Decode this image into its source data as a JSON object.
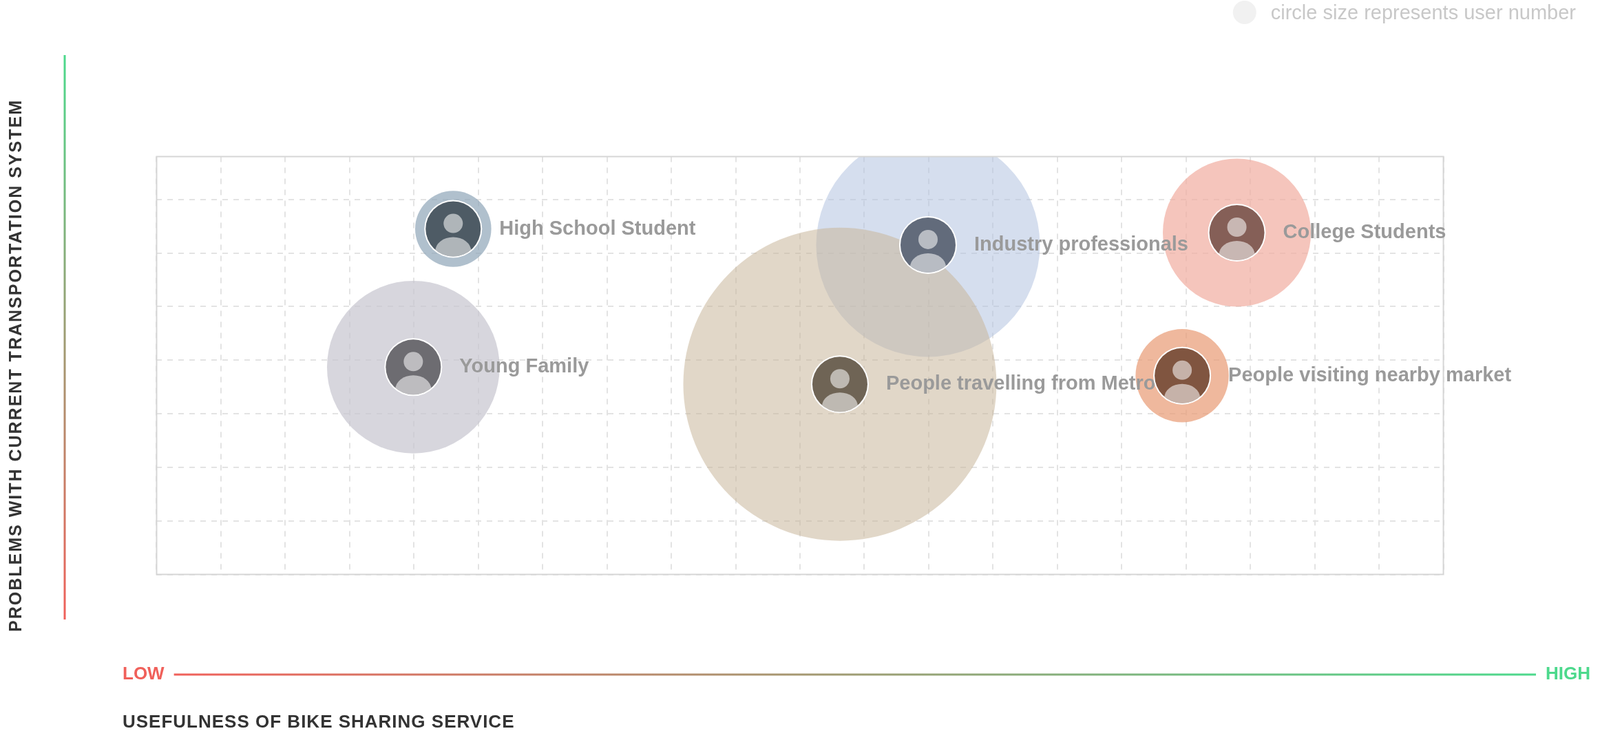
{
  "chart_data": {
    "type": "bubble",
    "x_label": "USEFULNESS OF BIKE SHARING SERVICE",
    "y_label": "PROBLEMS WITH CURRENT TRANSPORTATION SYSTEM",
    "x_low_label": "LOW",
    "x_high_label": "HIGH",
    "size_note": "circle size represents user number",
    "xlim": [
      0,
      20
    ],
    "xticks": [
      0,
      1,
      2,
      3,
      4,
      5,
      6,
      7,
      8,
      9,
      10,
      11,
      12,
      13,
      14,
      15,
      16,
      17,
      18,
      19,
      20
    ],
    "ylim": [
      0,
      7.8
    ],
    "yticks": [
      0,
      1,
      2,
      3,
      4,
      5,
      6,
      7
    ],
    "grid": true,
    "tick_labels": false,
    "points": [
      {
        "label": "High School Student",
        "x": 4.61,
        "y": 6.45,
        "size": 14,
        "color": "#8ea5b8"
      },
      {
        "label": "Young Family",
        "x": 3.99,
        "y": 3.87,
        "size": 72,
        "color": "#c6c5ce"
      },
      {
        "label": "People travelling from Metro",
        "x": 10.62,
        "y": 3.55,
        "size": 237,
        "color": "#c9b69a"
      },
      {
        "label": "Industry professionals",
        "x": 11.99,
        "y": 6.15,
        "size": 121,
        "color": "#b3c2e0"
      },
      {
        "label": "College Students",
        "x": 16.79,
        "y": 6.38,
        "size": 53,
        "color": "#f1ad9f"
      },
      {
        "label": "People visiting nearby market",
        "x": 15.94,
        "y": 3.71,
        "size": 21,
        "color": "#e89a74"
      }
    ]
  }
}
